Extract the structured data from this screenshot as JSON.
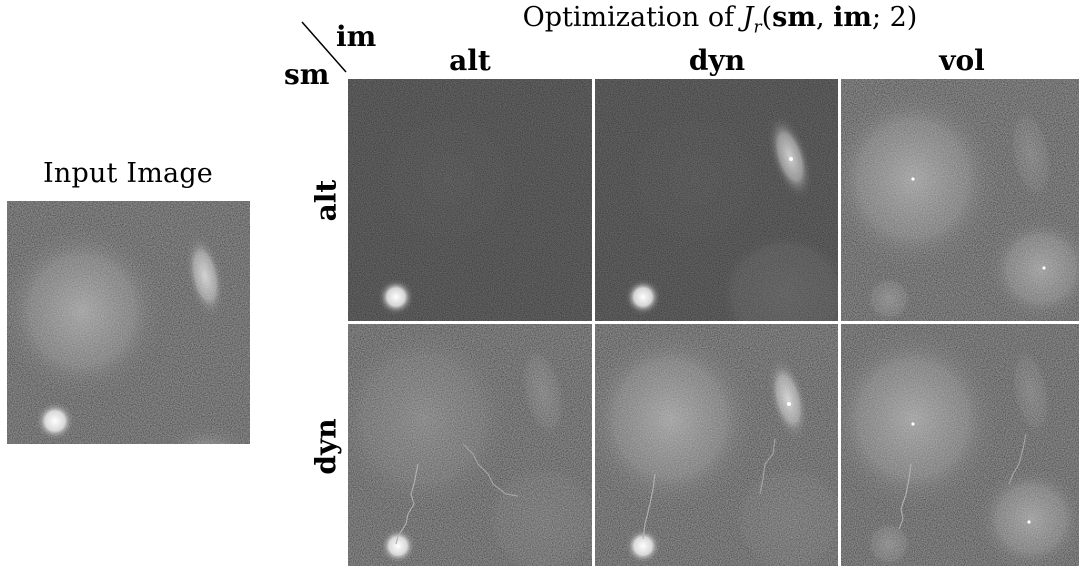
{
  "input_panel": {
    "title": "Input Image"
  },
  "grid": {
    "title_prefix": "Optimization of ",
    "title_var": "J",
    "title_sub": "r",
    "title_args_bold_1": "sm",
    "title_args_bold_2": "im",
    "title_args_rest": "; 2)",
    "corner_column_axis": "im",
    "corner_row_axis": "sm",
    "columns": [
      "alt",
      "dyn",
      "vol"
    ],
    "rows": [
      "alt",
      "dyn"
    ]
  },
  "colors": {
    "background": "#ffffff",
    "image_background": "#0a0a0a",
    "gutter": "#ffffff"
  }
}
